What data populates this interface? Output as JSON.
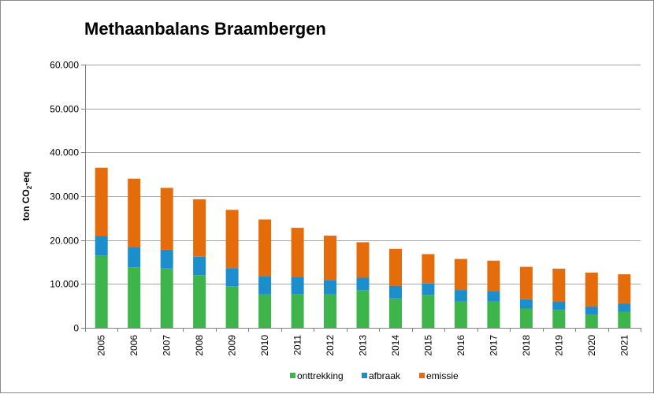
{
  "chart_data": {
    "type": "bar",
    "stacked": true,
    "title": "Methaanbalans Braambergen",
    "ylabel": "ton CO2-eq",
    "ylabel_parts": {
      "main": "ton CO",
      "sub": "2",
      "suffix": "-eq"
    },
    "xlabel": "",
    "ylim": [
      0,
      60000
    ],
    "yticks": [
      0,
      10000,
      20000,
      30000,
      40000,
      50000,
      60000
    ],
    "ytick_labels": [
      "0",
      "10.000",
      "20.000",
      "30.000",
      "40.000",
      "50.000",
      "60.000"
    ],
    "grid": true,
    "legend_position": "bottom",
    "categories": [
      "2005",
      "2006",
      "2007",
      "2008",
      "2009",
      "2010",
      "2011",
      "2012",
      "2013",
      "2014",
      "2015",
      "2016",
      "2017",
      "2018",
      "2019",
      "2020",
      "2021"
    ],
    "series": [
      {
        "name": "onttrekking",
        "color": "#3db54a",
        "values": [
          16500,
          13800,
          13500,
          12000,
          9500,
          7600,
          7700,
          7600,
          8500,
          6700,
          7500,
          6000,
          6000,
          4400,
          4100,
          2900,
          3600
        ]
      },
      {
        "name": "afbraak",
        "color": "#1c8ecb",
        "values": [
          4500,
          4600,
          4300,
          4200,
          4100,
          4200,
          3800,
          3300,
          2900,
          2900,
          2600,
          2600,
          2400,
          2100,
          1900,
          2000,
          2000
        ]
      },
      {
        "name": "emissie",
        "color": "#e46c0a",
        "values": [
          15500,
          15600,
          14100,
          13100,
          13300,
          12900,
          11300,
          10100,
          8100,
          8400,
          6700,
          7100,
          6900,
          7400,
          7500,
          7700,
          6600
        ]
      }
    ]
  }
}
